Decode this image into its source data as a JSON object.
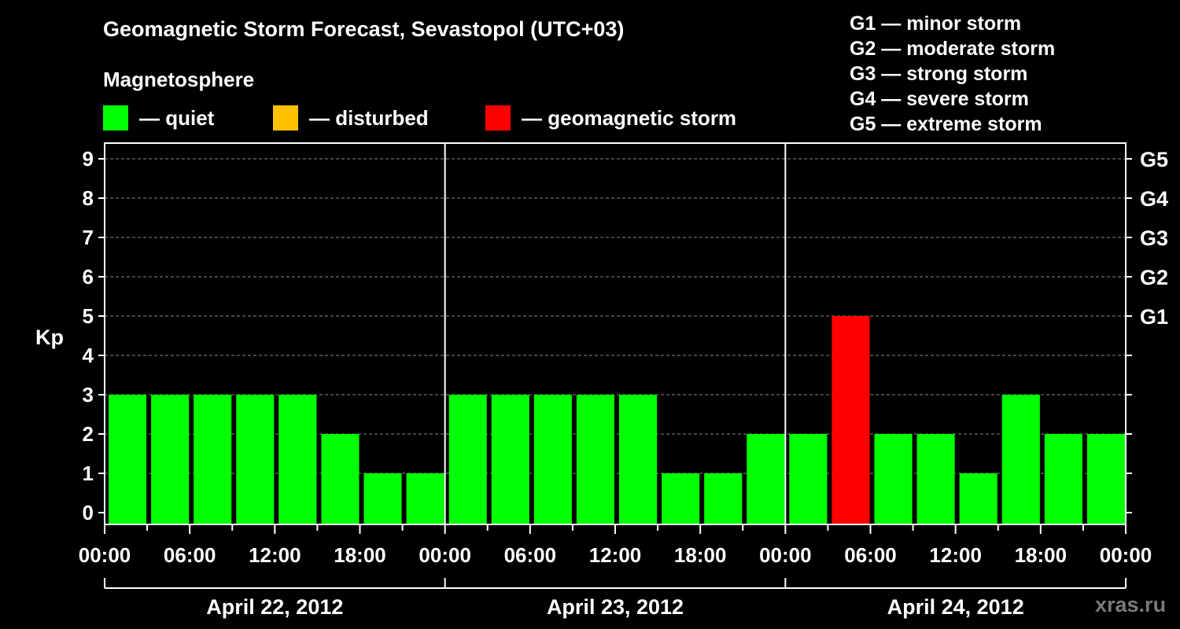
{
  "title": "Geomagnetic Storm Forecast, Sevastopol (UTC+03)",
  "legend": {
    "heading": "Magnetosphere",
    "items": [
      {
        "label": "— quiet",
        "color": "#00ff00"
      },
      {
        "label": "— disturbed",
        "color": "#ffc000"
      },
      {
        "label": "— geomagnetic storm",
        "color": "#ff0000"
      }
    ]
  },
  "g_scale": [
    "G1 — minor storm",
    "G2 — moderate storm",
    "G3 — strong storm",
    "G4 — severe storm",
    "G5 — extreme storm"
  ],
  "watermark": "xras.ru",
  "chart_data": {
    "type": "bar",
    "title": "Geomagnetic Storm Forecast, Sevastopol (UTC+03)",
    "ylabel": "Kp",
    "ylim": [
      0,
      9
    ],
    "yticks": [
      "0",
      "1",
      "2",
      "3",
      "4",
      "5",
      "6",
      "7",
      "8",
      "9"
    ],
    "y2_labels": [
      {
        "kp": 5,
        "label": "G1"
      },
      {
        "kp": 6,
        "label": "G2"
      },
      {
        "kp": 7,
        "label": "G3"
      },
      {
        "kp": 8,
        "label": "G4"
      },
      {
        "kp": 9,
        "label": "G5"
      }
    ],
    "xtick_labels": [
      "00:00",
      "06:00",
      "12:00",
      "18:00",
      "00:00",
      "06:00",
      "12:00",
      "18:00",
      "00:00",
      "06:00",
      "12:00",
      "18:00",
      "00:00"
    ],
    "days": [
      "April 22, 2012",
      "April 23, 2012",
      "April 24, 2012"
    ],
    "values": [
      3,
      3,
      3,
      3,
      3,
      2,
      1,
      1,
      3,
      3,
      3,
      3,
      3,
      1,
      1,
      2,
      2,
      5,
      2,
      2,
      1,
      3,
      2,
      2
    ],
    "colors": {
      "quiet": "#00ff00",
      "disturbed": "#ffc000",
      "storm": "#ff0000"
    },
    "grid": true
  }
}
